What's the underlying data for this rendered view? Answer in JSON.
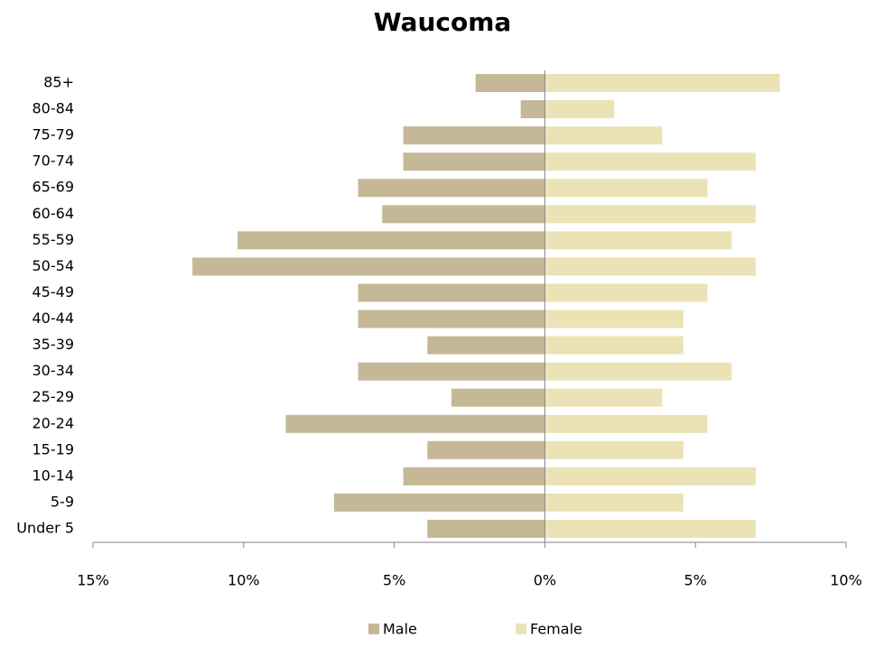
{
  "chart_data": {
    "type": "pyramid",
    "title": "Waucoma",
    "categories": [
      "85+",
      "80-84",
      "75-79",
      "70-74",
      "65-69",
      "60-64",
      "55-59",
      "50-54",
      "45-49",
      "40-44",
      "35-39",
      "30-34",
      "25-29",
      "20-24",
      "15-19",
      "10-14",
      "5-9",
      "Under 5"
    ],
    "series": [
      {
        "name": "Male",
        "color": "#c4b897",
        "values": [
          -2.3,
          -0.8,
          -4.7,
          -4.7,
          -6.2,
          -5.4,
          -10.2,
          -11.7,
          -6.2,
          -6.2,
          -3.9,
          -6.2,
          -3.1,
          -8.6,
          -3.9,
          -4.7,
          -7.0,
          -3.9
        ]
      },
      {
        "name": "Female",
        "color": "#ebe3b5",
        "values": [
          7.8,
          2.3,
          3.9,
          7.0,
          5.4,
          7.0,
          6.2,
          7.0,
          5.4,
          4.6,
          4.6,
          6.2,
          3.9,
          5.4,
          4.6,
          7.0,
          4.6,
          7.0
        ]
      }
    ],
    "xlim": [
      -15,
      10
    ],
    "xticks": [
      {
        "value": -15,
        "label": "15%"
      },
      {
        "value": -10,
        "label": "10%"
      },
      {
        "value": -5,
        "label": "5%"
      },
      {
        "value": 0,
        "label": "0%"
      },
      {
        "value": 5,
        "label": "5%"
      },
      {
        "value": 10,
        "label": "10%"
      }
    ],
    "legend": "bottom"
  }
}
